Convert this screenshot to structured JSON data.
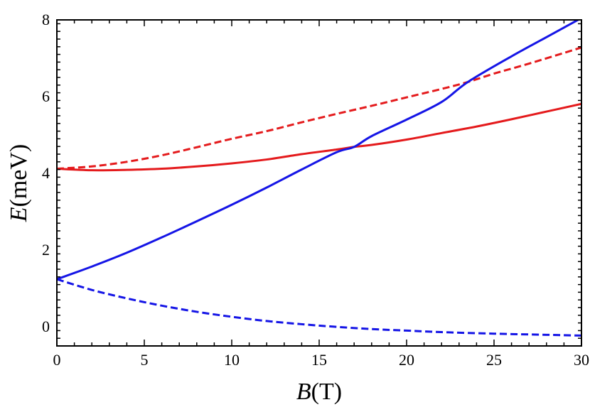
{
  "chart_data": {
    "type": "line",
    "title": "",
    "xlabel": {
      "symbol": "B",
      "unit": "(T)"
    },
    "ylabel": {
      "symbol": "E",
      "unit": "(meV)"
    },
    "xlim": [
      0,
      30
    ],
    "ylim": [
      -0.5,
      8
    ],
    "xticks": [
      0,
      5,
      10,
      15,
      20,
      25,
      30
    ],
    "yticks": [
      0,
      2,
      4,
      6,
      8
    ],
    "grid": false,
    "legend": "none",
    "series": [
      {
        "color": "#e41a1c",
        "dash": "solid",
        "x": [
          0,
          2,
          4,
          6,
          8,
          10,
          12,
          14,
          16,
          17,
          18,
          20,
          22,
          24,
          26,
          28,
          30
        ],
        "y": [
          4.12,
          4.08,
          4.09,
          4.12,
          4.18,
          4.26,
          4.36,
          4.5,
          4.62,
          4.69,
          4.74,
          4.88,
          5.05,
          5.22,
          5.41,
          5.61,
          5.81
        ]
      },
      {
        "color": "#e41a1c",
        "dash": "dashed",
        "x": [
          0,
          2,
          4,
          6,
          8,
          10,
          12,
          14,
          16,
          18,
          20,
          22,
          23.5,
          25,
          27,
          30
        ],
        "y": [
          4.12,
          4.18,
          4.3,
          4.47,
          4.68,
          4.9,
          5.1,
          5.33,
          5.55,
          5.76,
          5.98,
          6.2,
          6.38,
          6.6,
          6.86,
          7.28
        ]
      },
      {
        "color": "#1515e6",
        "dash": "solid",
        "x": [
          0,
          2,
          4,
          6,
          8,
          10,
          12,
          14,
          16,
          17,
          18,
          20,
          22,
          23.5,
          26,
          28,
          30
        ],
        "y": [
          1.24,
          1.57,
          1.93,
          2.33,
          2.75,
          3.18,
          3.63,
          4.1,
          4.55,
          4.69,
          4.97,
          5.4,
          5.86,
          6.38,
          7.05,
          7.55,
          8.05
        ]
      },
      {
        "color": "#1515e6",
        "dash": "dashed",
        "x": [
          0,
          2,
          4,
          6,
          8,
          10,
          12,
          15,
          18,
          20,
          22,
          25,
          28,
          30
        ],
        "y": [
          1.24,
          0.96,
          0.74,
          0.55,
          0.39,
          0.26,
          0.15,
          0.03,
          -0.06,
          -0.1,
          -0.14,
          -0.18,
          -0.21,
          -0.23
        ]
      }
    ]
  }
}
